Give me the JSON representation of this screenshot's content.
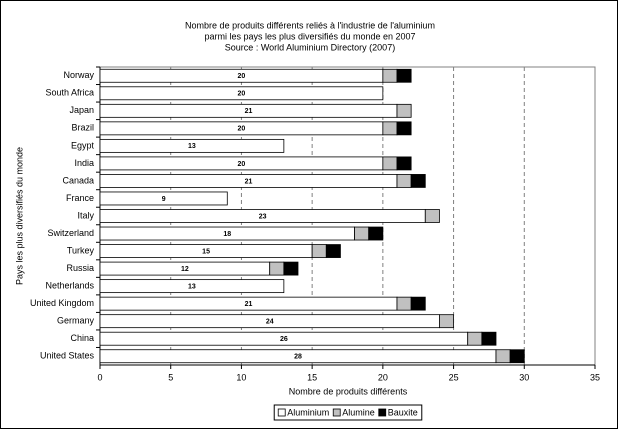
{
  "chart_data": {
    "type": "stacked-bar-horizontal",
    "title": [
      "Nombre de produits différents reliés à l'industrie de l'aluminium",
      "parmi les pays les plus diversifiés du monde en 2007",
      "Source : World Aluminium Directory (2007)"
    ],
    "x_label": "Nombre de produits différents",
    "y_label": "Pays les plus diversifiés du monde",
    "categories": [
      "Norway",
      "South Africa",
      "Japan",
      "Brazil",
      "Egypt",
      "India",
      "Canada",
      "France",
      "Italy",
      "Switzerland",
      "Turkey",
      "Russia",
      "Netherlands",
      "United Kingdom",
      "Germany",
      "China",
      "United States"
    ],
    "series": [
      {
        "name": "Aluminium",
        "color": "#ffffff",
        "values": [
          20,
          20,
          21,
          20,
          13,
          20,
          21,
          9,
          23,
          18,
          15,
          12,
          13,
          21,
          24,
          26,
          28
        ]
      },
      {
        "name": "Alumine",
        "color": "#c0c0c0",
        "values": [
          1,
          0,
          1,
          1,
          0,
          1,
          1,
          0,
          1,
          1,
          1,
          1,
          0,
          1,
          1,
          1,
          1
        ]
      },
      {
        "name": "Bauxite",
        "color": "#000000",
        "values": [
          1,
          0,
          0,
          1,
          0,
          1,
          1,
          0,
          0,
          1,
          1,
          1,
          0,
          1,
          0,
          1,
          1
        ]
      }
    ],
    "labeled_series": 0,
    "xlim": [
      0,
      35
    ],
    "xticks": [
      0,
      5,
      10,
      15,
      20,
      25,
      30,
      35
    ],
    "grid": true,
    "legend": "bottom"
  }
}
